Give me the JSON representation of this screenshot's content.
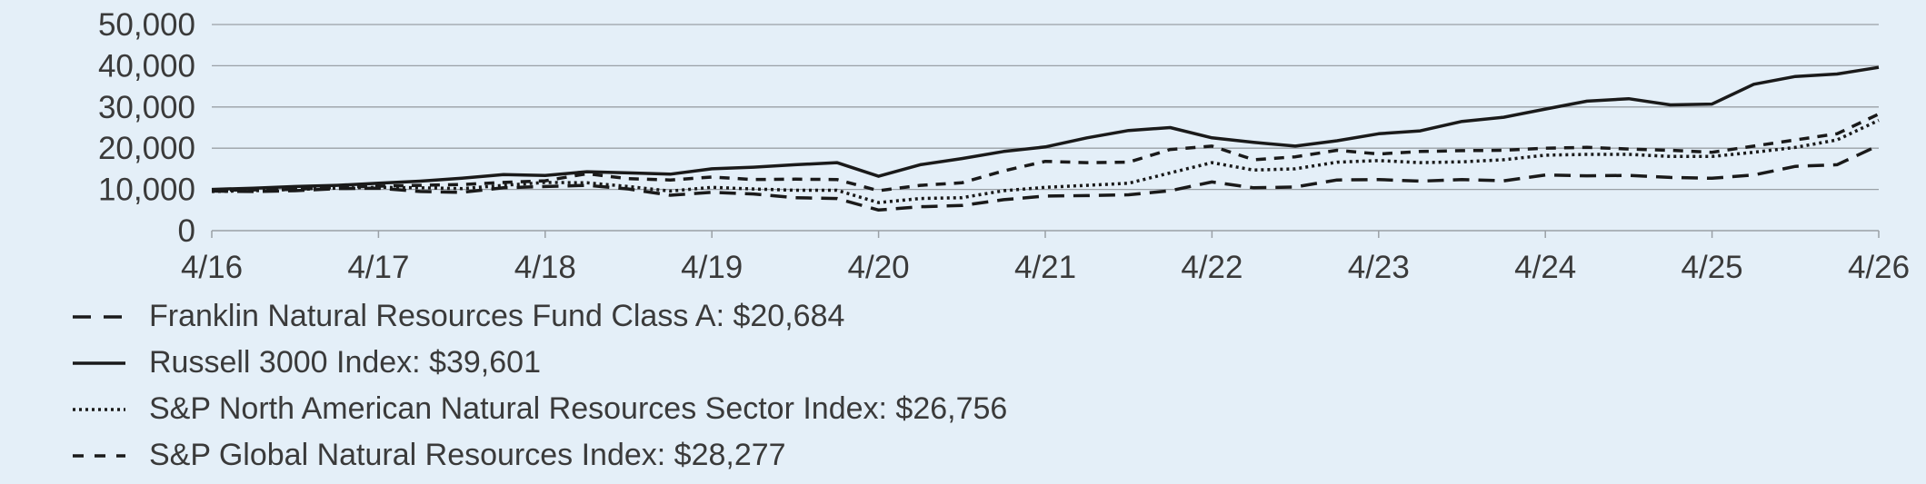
{
  "colors": {
    "background": "#e4eff8",
    "grid": "#9aa0a6",
    "series": "#1a1a1a",
    "text": "#3a3a3a"
  },
  "chart_data": {
    "type": "line",
    "title": "",
    "xlabel": "",
    "ylabel": "",
    "ylim": [
      0,
      50000
    ],
    "xlim": [
      "2016-04",
      "2026-04"
    ],
    "yticks": [
      0,
      10000,
      20000,
      30000,
      40000,
      50000
    ],
    "ytick_labels": [
      "0",
      "10,000",
      "20,000",
      "30,000",
      "40,000",
      "50,000"
    ],
    "xtick_labels": [
      "4/16",
      "4/17",
      "4/18",
      "4/19",
      "4/20",
      "4/21",
      "4/22",
      "4/23",
      "4/24",
      "4/25",
      "4/26"
    ],
    "grid": "horizontal",
    "legend_position": "bottom-left",
    "x": [
      "2016-04",
      "2016-07",
      "2016-10",
      "2017-01",
      "2017-04",
      "2017-07",
      "2017-10",
      "2018-01",
      "2018-04",
      "2018-07",
      "2018-10",
      "2019-01",
      "2019-04",
      "2019-07",
      "2019-10",
      "2020-01",
      "2020-04",
      "2020-07",
      "2020-10",
      "2021-01",
      "2021-04",
      "2021-07",
      "2021-10",
      "2022-01",
      "2022-04",
      "2022-07",
      "2022-10",
      "2023-01",
      "2023-04",
      "2023-07",
      "2023-10",
      "2024-01",
      "2024-04",
      "2024-07",
      "2024-10",
      "2025-01",
      "2025-04",
      "2025-07",
      "2025-10",
      "2026-01",
      "2026-04"
    ],
    "series": [
      {
        "name": "Franklin Natural Resources Fund Class A: $20,684",
        "dash": "long-dash",
        "values": [
          9600,
          9500,
          9700,
          10200,
          10300,
          9500,
          9300,
          10400,
          10700,
          11000,
          10100,
          8600,
          9300,
          8900,
          8000,
          7800,
          5000,
          5800,
          6100,
          7500,
          8400,
          8500,
          8700,
          9700,
          11800,
          10400,
          10600,
          12300,
          12400,
          12000,
          12400,
          12100,
          13500,
          13300,
          13400,
          12900,
          12700,
          13500,
          15600,
          16000,
          20684
        ]
      },
      {
        "name": "Russell 3000 Index: $39,601",
        "dash": "solid",
        "values": [
          10000,
          10300,
          10700,
          11000,
          11500,
          12000,
          12700,
          13600,
          13400,
          14300,
          14000,
          13700,
          15000,
          15400,
          16000,
          16500,
          13200,
          16000,
          17500,
          19200,
          20300,
          22500,
          24300,
          25000,
          22500,
          21400,
          20500,
          21800,
          23500,
          24200,
          26500,
          27500,
          29500,
          31400,
          32000,
          30500,
          30700,
          35500,
          37400,
          38000,
          39601
        ]
      },
      {
        "name": "S&P North American Natural Resources Sector Index: $26,756",
        "dash": "dot",
        "values": [
          9500,
          9700,
          10000,
          10300,
          10500,
          10400,
          10200,
          11000,
          11700,
          11600,
          10700,
          9600,
          10500,
          10100,
          9800,
          9800,
          6800,
          7800,
          8000,
          9700,
          10500,
          11000,
          11500,
          14000,
          16500,
          14700,
          15000,
          16600,
          17000,
          16500,
          16700,
          17200,
          18300,
          18500,
          18500,
          18000,
          18000,
          19000,
          20200,
          22000,
          26756
        ]
      },
      {
        "name": "S&P Global Natural Resources Index: $28,277",
        "dash": "short-dash",
        "values": [
          9800,
          9900,
          10000,
          10500,
          10800,
          11000,
          11200,
          11700,
          12100,
          13800,
          12600,
          12300,
          13000,
          12400,
          12500,
          12400,
          9700,
          11000,
          11600,
          14500,
          16800,
          16500,
          16600,
          19700,
          20500,
          17200,
          17900,
          19500,
          18600,
          19200,
          19400,
          19500,
          20000,
          20200,
          19800,
          19500,
          19000,
          20500,
          22000,
          23500,
          28277
        ]
      }
    ]
  }
}
